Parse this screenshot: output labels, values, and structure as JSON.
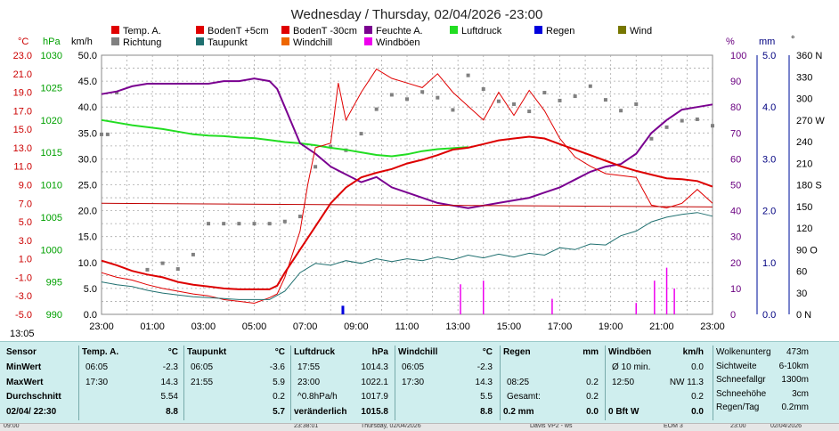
{
  "title": "Wednesday / Thursday, 02/04/2026  -23:00",
  "legend": [
    {
      "label": "Temp. A.",
      "color": "#e00000"
    },
    {
      "label": "BodenT +5cm",
      "color": "#e00000"
    },
    {
      "label": "BodenT -30cm",
      "color": "#e00000"
    },
    {
      "label": "Feuchte A.",
      "color": "#7a0090"
    },
    {
      "label": "Luftdruck",
      "color": "#22dd22"
    },
    {
      "label": "Regen",
      "color": "#0000dd"
    },
    {
      "label": "Wind",
      "color": "#777700"
    },
    {
      "label": "Richtung",
      "color": "#808080"
    },
    {
      "label": "Taupunkt",
      "color": "#207070"
    },
    {
      "label": "Windchill",
      "color": "#ee6600"
    },
    {
      "label": "Windböen",
      "color": "#ee00ee"
    }
  ],
  "axis_units": {
    "temp": "°C",
    "hpa": "hPa",
    "kmh": "km/h",
    "pct": "%",
    "mm": "mm",
    "deg": "°"
  },
  "chart_data": {
    "type": "line",
    "x_ticks": [
      "23:00",
      "01:00",
      "03:00",
      "05:00",
      "07:00",
      "09:00",
      "11:00",
      "13:00",
      "15:00",
      "17:00",
      "19:00",
      "21:00",
      "23:00"
    ],
    "axes": {
      "temp": {
        "labels": [
          "-5.0",
          "-3.0",
          "-1.0",
          "1.0",
          "3.0",
          "5.0",
          "7.0",
          "9.0",
          "11.0",
          "13.0",
          "15.0",
          "17.0",
          "19.0",
          "21.0",
          "23.0"
        ],
        "color": "#cc0000"
      },
      "hpa": {
        "labels": [
          "990",
          "995",
          "1000",
          "1005",
          "1010",
          "1015",
          "1020",
          "1025",
          "1030"
        ],
        "color": "#00a000"
      },
      "kmh": {
        "labels": [
          "0.0",
          "5.0",
          "10.0",
          "15.0",
          "20.0",
          "25.0",
          "30.0",
          "35.0",
          "40.0",
          "45.0",
          "50.0"
        ],
        "color": "#000000"
      },
      "pct": {
        "labels": [
          "0",
          "10",
          "20",
          "30",
          "40",
          "50",
          "60",
          "70",
          "80",
          "90",
          "100"
        ],
        "color": "#6a0080"
      },
      "mm": {
        "labels": [
          "0.0",
          "1.0",
          "2.0",
          "3.0",
          "4.0",
          "5.0"
        ],
        "color": "#000080"
      },
      "deg": {
        "labels": [
          "0 N",
          "30",
          "60",
          "90 O",
          "120",
          "150",
          "180 S",
          "210",
          "240",
          "270 W",
          "300",
          "330",
          "360 N"
        ],
        "color": "#000000"
      }
    },
    "series": [
      {
        "name": "Luftdruck",
        "axis": "hpa",
        "color": "#22dd22",
        "width": 2,
        "points": [
          [
            0,
            1020
          ],
          [
            1,
            1019.6
          ],
          [
            2,
            1019.2
          ],
          [
            3,
            1018.9
          ],
          [
            4,
            1018.6
          ],
          [
            5,
            1018.2
          ],
          [
            6,
            1017.8
          ],
          [
            7,
            1017.6
          ],
          [
            8,
            1017.5
          ],
          [
            9,
            1017.3
          ],
          [
            10,
            1017.2
          ],
          [
            11,
            1016.9
          ],
          [
            12,
            1016.6
          ],
          [
            13,
            1016.4
          ],
          [
            14,
            1016.1
          ],
          [
            15,
            1015.7
          ],
          [
            16,
            1015.4
          ],
          [
            17,
            1015.0
          ],
          [
            18,
            1014.6
          ],
          [
            19,
            1014.4
          ],
          [
            20,
            1014.7
          ],
          [
            21,
            1015.2
          ],
          [
            22,
            1015.5
          ],
          [
            24,
            1015.8
          ]
        ]
      },
      {
        "name": "Feuchte A.",
        "axis": "pct",
        "color": "#7a0090",
        "width": 2,
        "points": [
          [
            0,
            85
          ],
          [
            1,
            86
          ],
          [
            2,
            88
          ],
          [
            3,
            89
          ],
          [
            4,
            89
          ],
          [
            5,
            89
          ],
          [
            6,
            89
          ],
          [
            7,
            89
          ],
          [
            8,
            90
          ],
          [
            9,
            90
          ],
          [
            10,
            91
          ],
          [
            11,
            90
          ],
          [
            11.5,
            87
          ],
          [
            12,
            80
          ],
          [
            13,
            66
          ],
          [
            14,
            62
          ],
          [
            15,
            57
          ],
          [
            16,
            54
          ],
          [
            17,
            51
          ],
          [
            18,
            53
          ],
          [
            19,
            49
          ],
          [
            20,
            47
          ],
          [
            21,
            45
          ],
          [
            22,
            43
          ],
          [
            23,
            42
          ],
          [
            24,
            41
          ],
          [
            25,
            42
          ],
          [
            26,
            43
          ],
          [
            27,
            44
          ],
          [
            28,
            45
          ],
          [
            29,
            47
          ],
          [
            30,
            49
          ],
          [
            31,
            52
          ],
          [
            32,
            55
          ],
          [
            33,
            57
          ],
          [
            34,
            58
          ],
          [
            35,
            62
          ],
          [
            36,
            70
          ],
          [
            37,
            75
          ],
          [
            38,
            79
          ],
          [
            39,
            80
          ],
          [
            40,
            81
          ]
        ]
      },
      {
        "name": "Temp. A.",
        "axis": "temp",
        "color": "#dd0000",
        "width": 2,
        "points": [
          [
            0,
            0.8
          ],
          [
            1,
            0.3
          ],
          [
            2,
            -0.3
          ],
          [
            3,
            -0.7
          ],
          [
            4,
            -1.0
          ],
          [
            5,
            -1.5
          ],
          [
            6,
            -1.8
          ],
          [
            7,
            -2.0
          ],
          [
            8,
            -2.2
          ],
          [
            9,
            -2.3
          ],
          [
            10,
            -2.3
          ],
          [
            11,
            -2.3
          ],
          [
            11.5,
            -1.9
          ],
          [
            12,
            -0.5
          ],
          [
            13,
            2.0
          ],
          [
            14,
            4.5
          ],
          [
            15,
            7.0
          ],
          [
            16,
            8.7
          ],
          [
            17,
            9.8
          ],
          [
            18,
            10.3
          ],
          [
            19,
            10.7
          ],
          [
            20,
            11.3
          ],
          [
            21,
            11.7
          ],
          [
            22,
            12.2
          ],
          [
            23,
            12.8
          ],
          [
            24,
            13.0
          ],
          [
            25,
            13.4
          ],
          [
            26,
            13.8
          ],
          [
            27,
            14.0
          ],
          [
            28,
            14.2
          ],
          [
            29,
            14.0
          ],
          [
            30,
            13.4
          ],
          [
            31,
            12.8
          ],
          [
            32,
            12.2
          ],
          [
            33,
            11.6
          ],
          [
            34,
            11.0
          ],
          [
            35,
            10.5
          ],
          [
            36,
            10.1
          ],
          [
            37,
            9.7
          ],
          [
            38,
            9.6
          ],
          [
            39,
            9.4
          ],
          [
            40,
            8.8
          ]
        ]
      },
      {
        "name": "BodenT +5cm",
        "axis": "temp",
        "color": "#e00000",
        "width": 1,
        "points": [
          [
            0,
            -0.5
          ],
          [
            1,
            -1.0
          ],
          [
            2,
            -1.3
          ],
          [
            3,
            -1.8
          ],
          [
            4,
            -2.2
          ],
          [
            5,
            -2.5
          ],
          [
            6,
            -2.8
          ],
          [
            7,
            -3.0
          ],
          [
            8,
            -3.4
          ],
          [
            9,
            -3.6
          ],
          [
            10,
            -3.8
          ],
          [
            11,
            -3.2
          ],
          [
            11.5,
            -2.8
          ],
          [
            12,
            -1.0
          ],
          [
            13,
            4.0
          ],
          [
            13.5,
            9.0
          ],
          [
            14,
            13.0
          ],
          [
            15,
            13.5
          ],
          [
            15.5,
            20.0
          ],
          [
            16,
            16.0
          ],
          [
            17,
            19.0
          ],
          [
            18,
            21.5
          ],
          [
            19,
            20.5
          ],
          [
            20,
            20.0
          ],
          [
            21,
            19.5
          ],
          [
            22,
            21.0
          ],
          [
            23,
            19.0
          ],
          [
            24,
            17.5
          ],
          [
            25,
            16.0
          ],
          [
            26,
            19.0
          ],
          [
            27,
            16.5
          ],
          [
            28,
            19.2
          ],
          [
            29,
            17.0
          ],
          [
            30,
            14.0
          ],
          [
            31,
            12.0
          ],
          [
            32,
            11.0
          ],
          [
            33,
            10.2
          ],
          [
            34,
            10.0
          ],
          [
            35,
            9.8
          ],
          [
            36,
            6.8
          ],
          [
            37,
            6.5
          ],
          [
            38,
            7.0
          ],
          [
            39,
            8.5
          ],
          [
            40,
            7.0
          ]
        ]
      },
      {
        "name": "BodenT -30cm",
        "axis": "temp",
        "color": "#c00000",
        "width": 1,
        "points": [
          [
            0,
            7.0
          ],
          [
            40,
            6.6
          ]
        ]
      },
      {
        "name": "Taupunkt",
        "axis": "temp",
        "color": "#207070",
        "width": 1,
        "points": [
          [
            0,
            -1.5
          ],
          [
            1,
            -1.8
          ],
          [
            2,
            -2.0
          ],
          [
            3,
            -2.4
          ],
          [
            4,
            -2.7
          ],
          [
            5,
            -2.9
          ],
          [
            6,
            -3.1
          ],
          [
            7,
            -3.2
          ],
          [
            8,
            -3.3
          ],
          [
            9,
            -3.4
          ],
          [
            10,
            -3.4
          ],
          [
            11,
            -3.4
          ],
          [
            12,
            -2.5
          ],
          [
            13,
            -0.5
          ],
          [
            14,
            0.5
          ],
          [
            15,
            0.3
          ],
          [
            16,
            0.8
          ],
          [
            17,
            0.5
          ],
          [
            18,
            1.0
          ],
          [
            19,
            0.7
          ],
          [
            20,
            1.0
          ],
          [
            21,
            0.8
          ],
          [
            22,
            1.2
          ],
          [
            23,
            0.9
          ],
          [
            24,
            1.4
          ],
          [
            25,
            1.1
          ],
          [
            26,
            1.5
          ],
          [
            27,
            1.2
          ],
          [
            28,
            1.6
          ],
          [
            29,
            1.4
          ],
          [
            30,
            2.2
          ],
          [
            31,
            2.0
          ],
          [
            32,
            2.6
          ],
          [
            33,
            2.5
          ],
          [
            34,
            3.5
          ],
          [
            35,
            4.0
          ],
          [
            36,
            5.0
          ],
          [
            37,
            5.5
          ],
          [
            38,
            5.8
          ],
          [
            39,
            6.0
          ],
          [
            40,
            5.6
          ]
        ]
      }
    ],
    "direction_deg": [
      [
        0,
        250
      ],
      [
        0.4,
        250
      ],
      [
        1,
        308
      ],
      [
        3,
        62
      ],
      [
        4,
        71
      ],
      [
        5,
        63
      ],
      [
        6,
        83
      ],
      [
        7,
        126
      ],
      [
        8,
        126
      ],
      [
        9,
        126
      ],
      [
        10,
        126
      ],
      [
        11,
        126
      ],
      [
        12,
        129
      ],
      [
        13,
        136
      ],
      [
        14,
        205
      ],
      [
        15,
        233
      ],
      [
        16,
        228
      ],
      [
        17,
        251
      ],
      [
        18,
        285
      ],
      [
        19,
        305
      ],
      [
        20,
        299
      ],
      [
        21,
        309
      ],
      [
        22,
        301
      ],
      [
        23,
        284
      ],
      [
        24,
        332
      ],
      [
        25,
        313
      ],
      [
        26,
        296
      ],
      [
        27,
        292
      ],
      [
        28,
        282
      ],
      [
        29,
        308
      ],
      [
        30,
        297
      ],
      [
        31,
        303
      ],
      [
        32,
        317
      ],
      [
        33,
        298
      ],
      [
        34,
        283
      ],
      [
        35,
        292
      ],
      [
        36,
        244
      ],
      [
        37,
        260
      ],
      [
        38,
        269
      ],
      [
        39,
        271
      ],
      [
        40,
        262
      ]
    ],
    "gusts_kmh": [
      [
        23.5,
        5.8
      ],
      [
        25,
        6.5
      ],
      [
        29.5,
        3.0
      ],
      [
        35,
        2.2
      ],
      [
        36.2,
        6.5
      ],
      [
        37,
        9.0
      ],
      [
        37.5,
        5.0
      ]
    ],
    "rain_mm": [
      [
        15.8,
        0.2
      ]
    ],
    "x_labels_extra": {
      "bottom_left_time": "13:05"
    }
  },
  "stats": {
    "col1": {
      "header": "Sensor",
      "rows": [
        "MinWert",
        "MaxWert",
        "Durchschnitt",
        "02/04/ 22:30"
      ]
    },
    "temp": {
      "header": "Temp. A.",
      "unit": "°C",
      "rows": [
        [
          "06:05",
          "-2.3"
        ],
        [
          "17:30",
          "14.3"
        ],
        [
          "",
          "5.54"
        ],
        [
          "",
          "8.8"
        ]
      ]
    },
    "taupunkt": {
      "header": "Taupunkt",
      "unit": "°C",
      "rows": [
        [
          "06:05",
          "-3.6"
        ],
        [
          "21:55",
          "5.9"
        ],
        [
          "",
          "0.2"
        ],
        [
          "",
          "5.7"
        ]
      ]
    },
    "luftdruck": {
      "header": "Luftdruck",
      "unit": "hPa",
      "rows": [
        [
          "17:55",
          "1014.3"
        ],
        [
          "23:00",
          "1022.1"
        ],
        [
          "^0.8hPa/h",
          "1017.9"
        ],
        [
          "veränderlich",
          "1015.8"
        ]
      ]
    },
    "windchill": {
      "header": "Windchill",
      "unit": "°C",
      "rows": [
        [
          "06:05",
          "-2.3"
        ],
        [
          "17:30",
          "14.3"
        ],
        [
          "",
          "5.5"
        ],
        [
          "",
          "8.8"
        ]
      ]
    },
    "regen": {
      "header": "Regen",
      "unit": "mm",
      "rows": [
        [
          "",
          ""
        ],
        [
          "08:25",
          "0.2"
        ],
        [
          "Gesamt:",
          "0.2"
        ],
        [
          "0.2 mm",
          "0.0"
        ]
      ]
    },
    "windboen": {
      "header": "Windböen",
      "unit": "km/h",
      "rows": [
        [
          "Ø 10 min.",
          "0.0"
        ],
        [
          "12:50",
          "NW 11.3"
        ],
        [
          "",
          "0.2"
        ],
        [
          "0 Bft W",
          "0.0"
        ]
      ]
    },
    "extra": {
      "rows": [
        [
          "Wolkenunterg",
          "473m"
        ],
        [
          "Sichtweite",
          "6-10km"
        ],
        [
          "Schneefallgr",
          "1300m"
        ],
        [
          "Schneehöhe",
          "3cm"
        ],
        [
          "Regen/Tag",
          "0.2mm"
        ]
      ]
    }
  },
  "statusbar": [
    "09:00",
    "23:38:01",
    "Thursday, 02/04/2026",
    "Davis VP2 - ws",
    "EOM 3",
    "23:00",
    "02/04/2026"
  ]
}
